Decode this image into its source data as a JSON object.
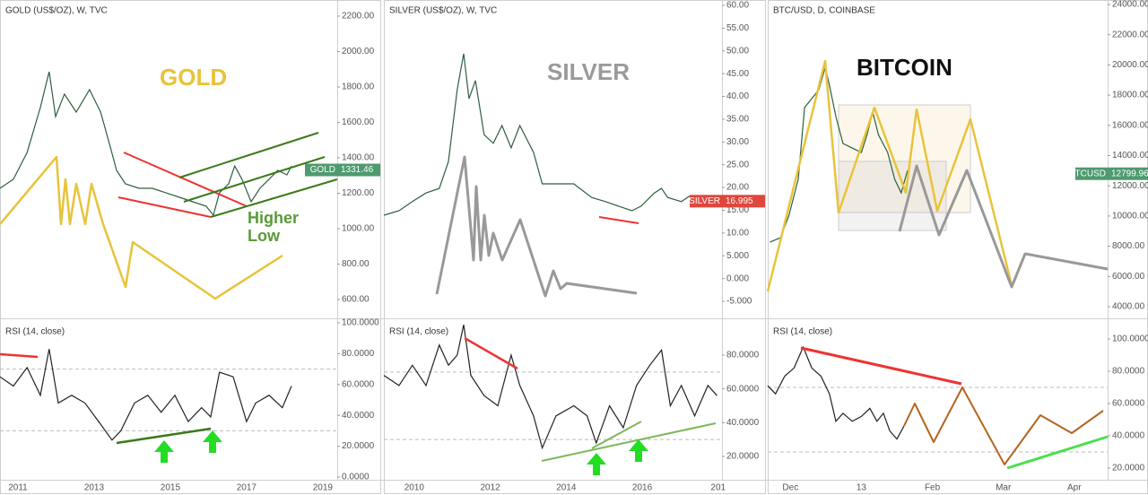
{
  "chart_data": [
    {
      "type": "line",
      "title": "GOLD (US$/OZ), W, TVC",
      "color": "#2e5e3e",
      "x": [
        2010.53,
        2010.88,
        2011.24,
        2011.59,
        2011.82,
        2011.99,
        2012.22,
        2012.53,
        2012.88,
        2013.17,
        2013.4,
        2013.59,
        2013.82,
        2014.18,
        2014.53,
        2014.88,
        2015.24,
        2015.59,
        2015.94,
        2016.13,
        2016.29,
        2016.53,
        2016.69,
        2016.88,
        2017.12,
        2017.35,
        2017.59,
        2017.82,
        2018.06,
        2018.18
      ],
      "values": [
        1228,
        1279,
        1430,
        1684,
        1886,
        1633,
        1760,
        1658,
        1785,
        1658,
        1481,
        1329,
        1253,
        1228,
        1228,
        1203,
        1177,
        1152,
        1127,
        1076,
        1203,
        1253,
        1354,
        1279,
        1152,
        1228,
        1279,
        1329,
        1304,
        1354
      ],
      "xlim": [
        2010.53,
        2019.38
      ],
      "ylim": [
        600,
        2200
      ],
      "yticks": [
        {
          "value": 600,
          "label": "600.00"
        },
        {
          "value": 800,
          "label": "800.00"
        },
        {
          "value": 1000,
          "label": "1000.00"
        },
        {
          "value": 1200,
          "label": "1200.00"
        },
        {
          "value": 1400,
          "label": "1400.00"
        },
        {
          "value": 1600,
          "label": "1600.00"
        },
        {
          "value": 1800,
          "label": "1800.00"
        },
        {
          "value": 2000,
          "label": "2000.00"
        },
        {
          "value": 2200,
          "label": "2200.00"
        }
      ],
      "price_tag": {
        "name": "GOLD",
        "value": 1331.46,
        "color": "#4e9a6e"
      },
      "annotations": [
        "GOLD",
        "Higher",
        "Low"
      ]
    },
    {
      "type": "line",
      "title": "RSI (14, close)",
      "color": "#222222",
      "x": [
        2010.53,
        2010.88,
        2011.24,
        2011.59,
        2011.82,
        2012.06,
        2012.41,
        2012.76,
        2013.12,
        2013.47,
        2013.7,
        2014.06,
        2014.41,
        2014.76,
        2015.12,
        2015.47,
        2015.82,
        2016.06,
        2016.29,
        2016.65,
        2017.0,
        2017.24,
        2017.59,
        2017.94,
        2018.18
      ],
      "values": [
        65,
        59,
        71,
        53,
        83,
        48,
        53,
        48,
        36,
        24,
        30,
        48,
        53,
        42,
        53,
        36,
        45,
        39,
        68,
        65,
        36,
        48,
        53,
        45,
        59
      ],
      "xlim": [
        2010.53,
        2019.38
      ],
      "ylim": [
        0,
        100
      ],
      "yticks": [
        {
          "value": 0,
          "label": "0.0000"
        },
        {
          "value": 20,
          "label": "20.0000"
        },
        {
          "value": 40,
          "label": "40.0000"
        },
        {
          "value": 60,
          "label": "60.0000"
        },
        {
          "value": 80,
          "label": "80.0000"
        },
        {
          "value": 100,
          "label": "100.0000"
        }
      ],
      "xticks": [
        2011,
        2013,
        2015,
        2017,
        2019
      ],
      "levels": [
        70,
        30
      ]
    },
    {
      "type": "line",
      "title": "SILVER (US$/OZ), W, TVC",
      "color": "#2e5e3e",
      "x": [
        2009.2,
        2009.6,
        2009.95,
        2010.31,
        2010.66,
        2010.9,
        2011.13,
        2011.3,
        2011.44,
        2011.61,
        2011.84,
        2012.08,
        2012.31,
        2012.55,
        2012.78,
        2013.14,
        2013.37,
        2013.73,
        2014.2,
        2014.67,
        2015.03,
        2015.38,
        2015.73,
        2015.97,
        2016.32,
        2016.51,
        2016.67,
        2017.03,
        2017.26
      ],
      "values": [
        13.9,
        14.9,
        16.9,
        18.8,
        19.8,
        25.7,
        41.5,
        49.4,
        39.5,
        43.5,
        31.6,
        29.7,
        33.6,
        28.7,
        33.6,
        27.7,
        20.8,
        20.8,
        20.8,
        17.8,
        16.9,
        15.9,
        14.9,
        15.9,
        18.8,
        19.8,
        17.8,
        16.9,
        18.2
      ],
      "xlim": [
        2009.2,
        2018.1
      ],
      "ylim": [
        -5,
        60
      ],
      "yticks": [
        {
          "value": -5,
          "label": "-5.000"
        },
        {
          "value": 0,
          "label": "0.000"
        },
        {
          "value": 5,
          "label": "5.000"
        },
        {
          "value": 10,
          "label": "10.00"
        },
        {
          "value": 15,
          "label": "15.00"
        },
        {
          "value": 20,
          "label": "20.00"
        },
        {
          "value": 25,
          "label": "25.00"
        },
        {
          "value": 30,
          "label": "30.00"
        },
        {
          "value": 35,
          "label": "35.00"
        },
        {
          "value": 40,
          "label": "40.00"
        },
        {
          "value": 45,
          "label": "45.00"
        },
        {
          "value": 50,
          "label": "50.00"
        },
        {
          "value": 55,
          "label": "55.00"
        },
        {
          "value": 60,
          "label": "60.00"
        }
      ],
      "price_tag": {
        "name": "SILVER",
        "value": 16.995,
        "color": "#e0463c"
      },
      "annotations": [
        "SILVER"
      ]
    },
    {
      "type": "line",
      "title": "RSI (14, close)",
      "color": "#222222",
      "x": [
        2009.2,
        2009.6,
        2009.95,
        2010.31,
        2010.66,
        2010.9,
        2011.13,
        2011.3,
        2011.49,
        2011.84,
        2012.2,
        2012.55,
        2012.78,
        2013.14,
        2013.37,
        2013.73,
        2014.2,
        2014.55,
        2014.79,
        2015.14,
        2015.5,
        2015.85,
        2016.2,
        2016.51,
        2016.74,
        2017.03,
        2017.38,
        2017.73,
        2017.97
      ],
      "values": [
        68,
        62,
        74,
        62,
        86,
        74,
        80,
        98,
        68,
        56,
        50,
        80,
        62,
        44,
        25,
        44,
        50,
        44,
        28,
        50,
        37,
        62,
        74,
        83,
        50,
        62,
        44,
        62,
        56
      ],
      "xlim": [
        2009.2,
        2018.1
      ],
      "ylim": [
        20,
        80
      ],
      "yticks": [
        {
          "value": 20,
          "label": "20.0000"
        },
        {
          "value": 40,
          "label": "40.0000"
        },
        {
          "value": 60,
          "label": "60.0000"
        },
        {
          "value": 80,
          "label": "80.0000"
        }
      ],
      "xticks": [
        2010,
        2012,
        2014,
        2016,
        {
          "value": 2018,
          "label": "201"
        }
      ],
      "levels": [
        70,
        30
      ]
    },
    {
      "type": "line",
      "title": "BTC/USD, D, COINBASE",
      "color": "#2e5e3e",
      "x": [
        11.71,
        11.86,
        11.98,
        12.11,
        12.2,
        12.3,
        12.4,
        12.49,
        12.55,
        12.64,
        12.74,
        12.87,
        13.0,
        13.08,
        13.16,
        13.24,
        13.37,
        13.47,
        13.56,
        13.65
      ],
      "values": [
        8270,
        8570,
        10050,
        12430,
        17180,
        17770,
        18360,
        19850,
        18660,
        16580,
        14800,
        14500,
        14210,
        15390,
        16880,
        15390,
        14210,
        12430,
        11540,
        13020
      ],
      "xlim": [
        11.68,
        16.47
      ],
      "ylim": [
        4000,
        24000
      ],
      "yticks": [
        {
          "value": 4000,
          "label": "4000.00"
        },
        {
          "value": 6000,
          "label": "6000.00"
        },
        {
          "value": 8000,
          "label": "8000.00"
        },
        {
          "value": 10000,
          "label": "10000.00"
        },
        {
          "value": 12000,
          "label": "12000.00"
        },
        {
          "value": 14000,
          "label": "14000.00"
        },
        {
          "value": 16000,
          "label": "16000.00"
        },
        {
          "value": 18000,
          "label": "18000.00"
        },
        {
          "value": 20000,
          "label": "20000.00"
        },
        {
          "value": 22000,
          "label": "22000.00"
        },
        {
          "value": 24000,
          "label": "24000.00"
        }
      ],
      "price_tag": {
        "name": "BTCUSD",
        "value": 12799.96,
        "color": "#4e9a6e"
      },
      "annotations": [
        "BITCOIN"
      ]
    },
    {
      "type": "line",
      "title": "RSI (14, close)",
      "color": "#222222",
      "x": [
        11.68,
        11.79,
        11.92,
        12.05,
        12.18,
        12.3,
        12.43,
        12.55,
        12.64,
        12.74,
        12.87,
        13.0,
        13.12,
        13.22,
        13.31,
        13.4,
        13.5,
        13.6
      ],
      "values": [
        71,
        66,
        77,
        82,
        95,
        82,
        77,
        66,
        49,
        54,
        49,
        52,
        57,
        49,
        54,
        43,
        38,
        46
      ],
      "xlim": [
        11.68,
        16.47
      ],
      "ylim": [
        20,
        100
      ],
      "yticks": [
        {
          "value": 20,
          "label": "20.0000"
        },
        {
          "value": 40,
          "label": "40.0000"
        },
        {
          "value": 60,
          "label": "60.0000"
        },
        {
          "value": 80,
          "label": "80.0000"
        },
        {
          "value": 100,
          "label": "100.0000"
        }
      ],
      "xticks": [
        {
          "value": 12,
          "label": "Dec"
        },
        13,
        {
          "value": 14,
          "label": "Feb"
        },
        {
          "value": 15,
          "label": "Mar"
        },
        {
          "value": 16,
          "label": "Apr"
        }
      ],
      "levels": [
        70,
        30
      ]
    }
  ]
}
